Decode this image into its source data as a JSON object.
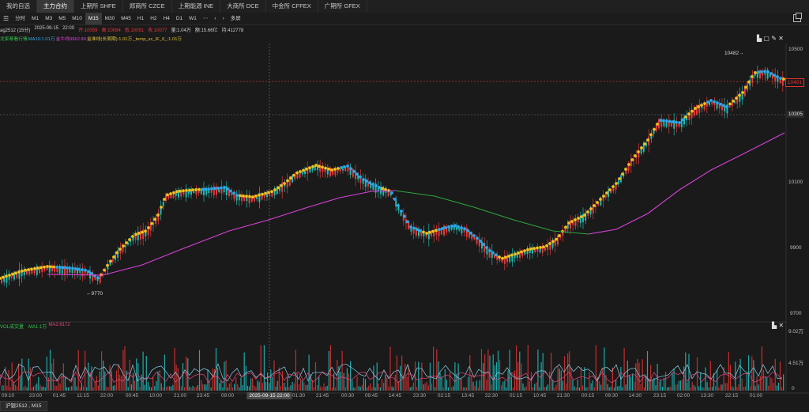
{
  "tabs": [
    {
      "label": "我的自选"
    },
    {
      "label": "主力合约"
    },
    {
      "label": "上期所 SHFE"
    },
    {
      "label": "郑商所 CZCE"
    },
    {
      "label": "上期能源 INE"
    },
    {
      "label": "大商所 DCE"
    },
    {
      "label": "中金所 CFFEX"
    },
    {
      "label": "广期所 GFEX"
    }
  ],
  "active_tab": 1,
  "periods": {
    "menu_icon": "menu-icon",
    "items": [
      "分时",
      "M1",
      "M3",
      "M5",
      "M10",
      "M15",
      "M30",
      "M45",
      "H1",
      "H2",
      "H4",
      "D1",
      "W1",
      "⋯"
    ],
    "active": "M15",
    "prev": "‹",
    "next": "›",
    "more": "多屏"
  },
  "info": {
    "symbol": "ag2512 (15分)",
    "date": "2025-09-15",
    "time": "22:00",
    "open": "开:10059",
    "high": "高:10084",
    "low": "低:10051",
    "close": "收:10077",
    "volume": "量:1.04万",
    "amount": "额:15.66亿",
    "oi": "持:412778"
  },
  "ma_legend": [
    {
      "text": "龙家都看行情",
      "color": "#31c44a"
    },
    {
      "text": "MA10:1.01万",
      "color": "#3aa7e8"
    },
    {
      "text": "金牛线9962.80",
      "color": "#d842d8"
    },
    {
      "text": "金准线(长周期):1.01万",
      "color": "#e0c23a"
    },
    {
      "text": "_temp_sc_IF_6_:1.01万",
      "color": "#e0c23a"
    }
  ],
  "price_axis": {
    "labels": [
      "10500",
      "10100",
      "9900",
      "9700"
    ]
  },
  "price_tags": {
    "current": "10401",
    "cross": "10305"
  },
  "annotations": {
    "high": "10482→",
    "low": "←9770"
  },
  "vol_legend": [
    {
      "text": "VOL成交量",
      "color": "#31c44a"
    },
    {
      "text": "MA1:1万",
      "color": "#31c44a"
    },
    {
      "text": "MA2:8172",
      "color": "#e8457b"
    }
  ],
  "vol_axis": {
    "labels": [
      "9.02万",
      "4.51万",
      "0"
    ]
  },
  "time_axis": [
    "09:10",
    "23:00",
    "01:45",
    "11:15",
    "22:00",
    "00:45",
    "10:00",
    "21:00",
    "23:45",
    "09:00",
    "2025-09-15  22:00",
    "01:30",
    "21:45",
    "00:30",
    "09:45",
    "14:45",
    "23:30",
    "02:15",
    "13:45",
    "22:30",
    "01:15",
    "10:45",
    "21:30",
    "00:15",
    "09:30",
    "14:30",
    "23:15",
    "02:00",
    "13:30",
    "22:15",
    "01:00"
  ],
  "crosshair_time": "2025-09-15  22:00",
  "bottom_tab": "沪银2512 , M15",
  "toolbar_icons": [
    "bar-chart-icon",
    "box-icon",
    "edit-icon",
    "close-icon"
  ],
  "vol_icons": [
    "bar-chart-icon",
    "close-icon"
  ],
  "colors": {
    "up": "#e23a3a",
    "down": "#22b8b0",
    "yellow_dot": "#f0c020",
    "blue_dot": "#2aa8ee",
    "ma_magenta": "#d842d8",
    "ma_green": "#2ea43c"
  }
}
